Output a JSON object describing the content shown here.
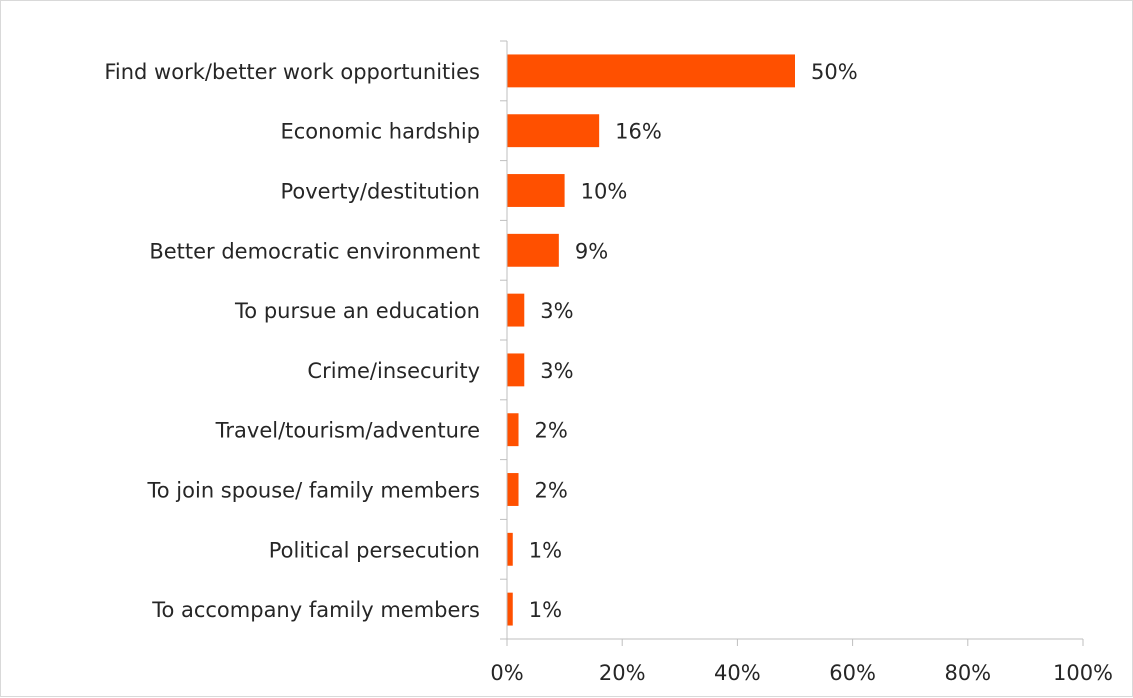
{
  "chart_data": {
    "type": "bar",
    "orientation": "horizontal",
    "categories": [
      "Find work/better work opportunities",
      "Economic hardship",
      "Poverty/destitution",
      "Better democratic environment",
      "To pursue an education",
      "Crime/insecurity",
      "Travel/tourism/adventure",
      "To join spouse/ family members",
      "Political persecution",
      "To accompany family members"
    ],
    "values": [
      50,
      16,
      10,
      9,
      3,
      3,
      2,
      2,
      1,
      1
    ],
    "value_labels": [
      "50%",
      "16%",
      "10%",
      "9%",
      "3%",
      "3%",
      "2%",
      "2%",
      "1%",
      "1%"
    ],
    "xlim": [
      0,
      100
    ],
    "x_ticks": [
      0,
      20,
      40,
      60,
      80,
      100
    ],
    "x_tick_labels": [
      "0%",
      "20%",
      "40%",
      "60%",
      "80%",
      "100%"
    ],
    "title": "",
    "xlabel": "",
    "ylabel": "",
    "grid": false,
    "legend": "none",
    "bar_color": "#ff5000",
    "axis_color": "#bfbfbf",
    "text_color": "#262626"
  }
}
